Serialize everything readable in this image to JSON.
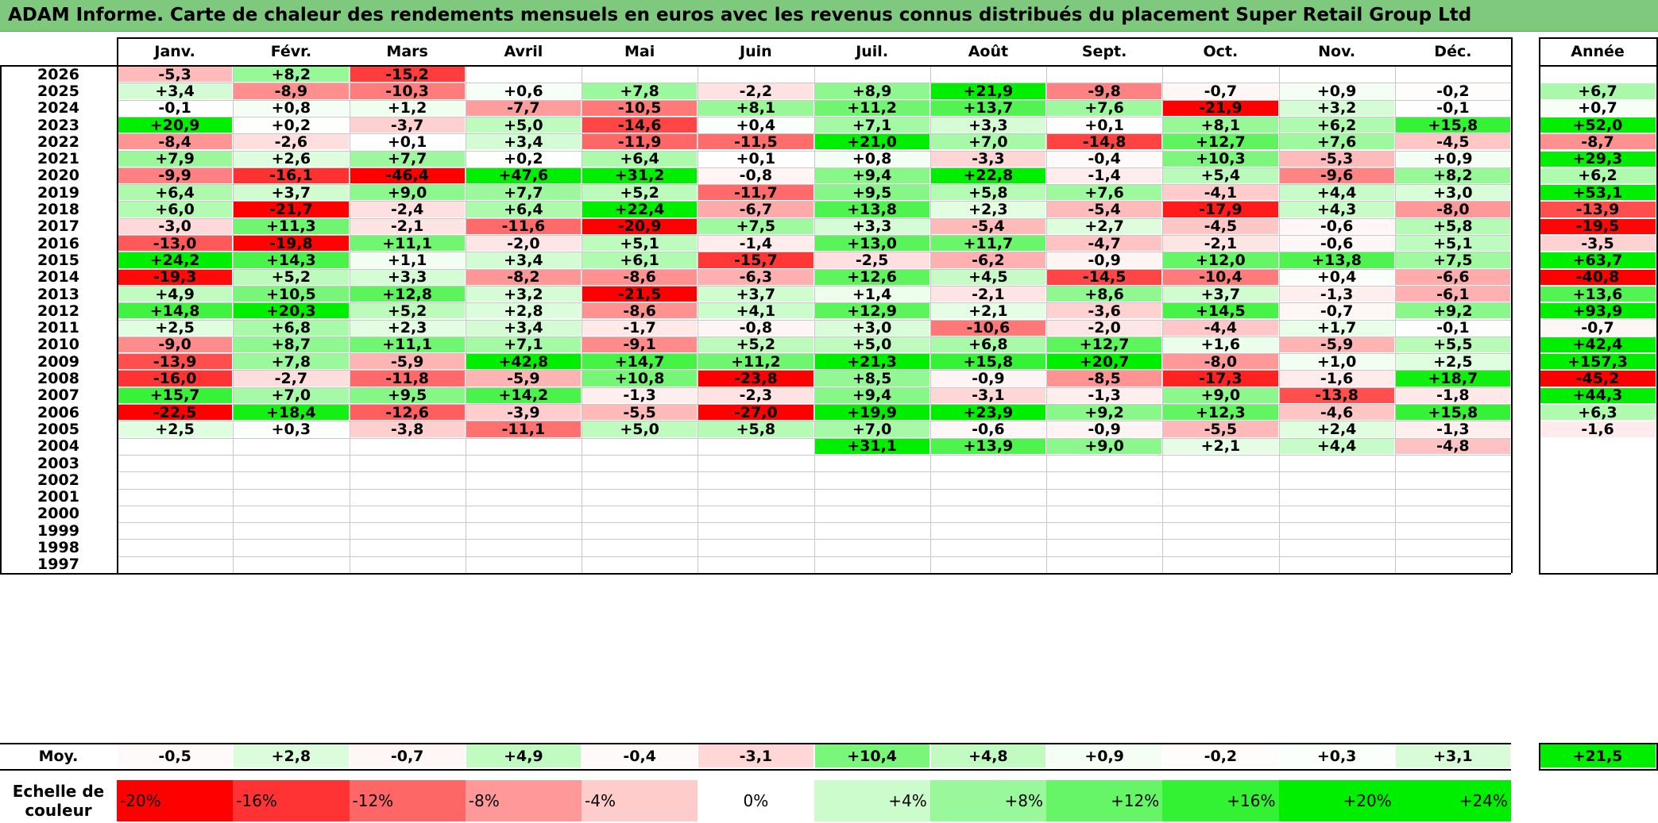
{
  "title": "ADAM Informe. Carte de chaleur des rendements mensuels en euros avec les revenus connus distribués du placement Super Retail Group Ltd",
  "colors": {
    "title_bg": "#7fc97f",
    "red": "#ff0000",
    "green": "#00ee00",
    "white": "#ffffff"
  },
  "chart_data": {
    "type": "heatmap",
    "months": [
      "Janv.",
      "Févr.",
      "Mars",
      "Avril",
      "Mai",
      "Juin",
      "Juil.",
      "Août",
      "Sept.",
      "Oct.",
      "Nov.",
      "Déc."
    ],
    "year_header": "Année",
    "rows": [
      {
        "year": "2026",
        "values": [
          -5.3,
          8.2,
          -15.2,
          null,
          null,
          null,
          null,
          null,
          null,
          null,
          null,
          null
        ],
        "labels": [
          "-5,3",
          "+8,2",
          "-15,2",
          "",
          "",
          "",
          "",
          "",
          "",
          "",
          "",
          ""
        ],
        "annual": null,
        "annual_label": ""
      },
      {
        "year": "2025",
        "values": [
          3.4,
          -8.9,
          -10.3,
          0.6,
          7.8,
          -2.2,
          8.9,
          21.9,
          -9.8,
          -0.7,
          0.9,
          -0.2
        ],
        "labels": [
          "+3,4",
          "-8,9",
          "-10,3",
          "+0,6",
          "+7,8",
          "-2,2",
          "+8,9",
          "+21,9",
          "-9,8",
          "-0,7",
          "+0,9",
          "-0,2"
        ],
        "annual": 6.7,
        "annual_label": "+6,7"
      },
      {
        "year": "2024",
        "values": [
          -0.1,
          0.8,
          1.2,
          -7.7,
          -10.5,
          8.1,
          11.2,
          13.7,
          7.6,
          -21.9,
          3.2,
          -0.1
        ],
        "labels": [
          "-0,1",
          "+0,8",
          "+1,2",
          "-7,7",
          "-10,5",
          "+8,1",
          "+11,2",
          "+13,7",
          "+7,6",
          "-21,9",
          "+3,2",
          "-0,1"
        ],
        "annual": 0.7,
        "annual_label": "+0,7"
      },
      {
        "year": "2023",
        "values": [
          20.9,
          0.2,
          -3.7,
          5.0,
          -14.6,
          0.4,
          7.1,
          3.3,
          0.1,
          8.1,
          6.2,
          15.8
        ],
        "labels": [
          "+20,9",
          "+0,2",
          "-3,7",
          "+5,0",
          "-14,6",
          "+0,4",
          "+7,1",
          "+3,3",
          "+0,1",
          "+8,1",
          "+6,2",
          "+15,8"
        ],
        "annual": 52.0,
        "annual_label": "+52,0"
      },
      {
        "year": "2022",
        "values": [
          -8.4,
          -2.6,
          0.1,
          3.4,
          -11.9,
          -11.5,
          21.0,
          7.0,
          -14.8,
          12.7,
          7.6,
          -4.5
        ],
        "labels": [
          "-8,4",
          "-2,6",
          "+0,1",
          "+3,4",
          "-11,9",
          "-11,5",
          "+21,0",
          "+7,0",
          "-14,8",
          "+12,7",
          "+7,6",
          "-4,5"
        ],
        "annual": -8.7,
        "annual_label": "-8,7"
      },
      {
        "year": "2021",
        "values": [
          7.9,
          2.6,
          7.7,
          0.2,
          6.4,
          0.1,
          0.8,
          -3.3,
          -0.4,
          10.3,
          -5.3,
          0.9
        ],
        "labels": [
          "+7,9",
          "+2,6",
          "+7,7",
          "+0,2",
          "+6,4",
          "+0,1",
          "+0,8",
          "-3,3",
          "-0,4",
          "+10,3",
          "-5,3",
          "+0,9"
        ],
        "annual": 29.3,
        "annual_label": "+29,3"
      },
      {
        "year": "2020",
        "values": [
          -9.9,
          -16.1,
          -46.4,
          47.6,
          31.2,
          -0.8,
          9.4,
          22.8,
          -1.4,
          5.4,
          -9.6,
          8.2
        ],
        "labels": [
          "-9,9",
          "-16,1",
          "-46,4",
          "+47,6",
          "+31,2",
          "-0,8",
          "+9,4",
          "+22,8",
          "-1,4",
          "+5,4",
          "-9,6",
          "+8,2"
        ],
        "annual": 6.2,
        "annual_label": "+6,2"
      },
      {
        "year": "2019",
        "values": [
          6.4,
          3.7,
          9.0,
          7.7,
          5.2,
          -11.7,
          9.5,
          5.8,
          7.6,
          -4.1,
          4.4,
          3.0
        ],
        "labels": [
          "+6,4",
          "+3,7",
          "+9,0",
          "+7,7",
          "+5,2",
          "-11,7",
          "+9,5",
          "+5,8",
          "+7,6",
          "-4,1",
          "+4,4",
          "+3,0"
        ],
        "annual": 53.1,
        "annual_label": "+53,1"
      },
      {
        "year": "2018",
        "values": [
          6.0,
          -21.7,
          -2.4,
          6.4,
          22.4,
          -6.7,
          13.8,
          2.3,
          -5.4,
          -17.9,
          4.3,
          -8.0
        ],
        "labels": [
          "+6,0",
          "-21,7",
          "-2,4",
          "+6,4",
          "+22,4",
          "-6,7",
          "+13,8",
          "+2,3",
          "-5,4",
          "-17,9",
          "+4,3",
          "-8,0"
        ],
        "annual": -13.9,
        "annual_label": "-13,9"
      },
      {
        "year": "2017",
        "values": [
          -3.0,
          11.3,
          -2.1,
          -11.6,
          -20.9,
          7.5,
          3.3,
          -5.4,
          2.7,
          -4.5,
          -0.6,
          5.8
        ],
        "labels": [
          "-3,0",
          "+11,3",
          "-2,1",
          "-11,6",
          "-20,9",
          "+7,5",
          "+3,3",
          "-5,4",
          "+2,7",
          "-4,5",
          "-0,6",
          "+5,8"
        ],
        "annual": -19.5,
        "annual_label": "-19,5"
      },
      {
        "year": "2016",
        "values": [
          -13.0,
          -19.8,
          11.1,
          -2.0,
          5.1,
          -1.4,
          13.0,
          11.7,
          -4.7,
          -2.1,
          -0.6,
          5.1
        ],
        "labels": [
          "-13,0",
          "-19,8",
          "+11,1",
          "-2,0",
          "+5,1",
          "-1,4",
          "+13,0",
          "+11,7",
          "-4,7",
          "-2,1",
          "-0,6",
          "+5,1"
        ],
        "annual": -3.5,
        "annual_label": "-3,5"
      },
      {
        "year": "2015",
        "values": [
          24.2,
          14.3,
          1.1,
          3.4,
          6.1,
          -15.7,
          -2.5,
          -6.2,
          -0.9,
          12.0,
          13.8,
          7.5
        ],
        "labels": [
          "+24,2",
          "+14,3",
          "+1,1",
          "+3,4",
          "+6,1",
          "-15,7",
          "-2,5",
          "-6,2",
          "-0,9",
          "+12,0",
          "+13,8",
          "+7,5"
        ],
        "annual": 63.7,
        "annual_label": "+63,7"
      },
      {
        "year": "2014",
        "values": [
          -19.3,
          5.2,
          3.3,
          -8.2,
          -8.6,
          -6.3,
          12.6,
          4.5,
          -14.5,
          -10.4,
          0.4,
          -6.6
        ],
        "labels": [
          "-19,3",
          "+5,2",
          "+3,3",
          "-8,2",
          "-8,6",
          "-6,3",
          "+12,6",
          "+4,5",
          "-14,5",
          "-10,4",
          "+0,4",
          "-6,6"
        ],
        "annual": -40.8,
        "annual_label": "-40,8"
      },
      {
        "year": "2013",
        "values": [
          4.9,
          10.5,
          12.8,
          3.2,
          -21.5,
          3.7,
          1.4,
          -2.1,
          8.6,
          3.7,
          -1.3,
          -6.1
        ],
        "labels": [
          "+4,9",
          "+10,5",
          "+12,8",
          "+3,2",
          "-21,5",
          "+3,7",
          "+1,4",
          "-2,1",
          "+8,6",
          "+3,7",
          "-1,3",
          "-6,1"
        ],
        "annual": 13.6,
        "annual_label": "+13,6"
      },
      {
        "year": "2012",
        "values": [
          14.8,
          20.3,
          5.2,
          2.8,
          -8.6,
          4.1,
          12.9,
          2.1,
          -3.6,
          14.5,
          -0.7,
          9.2
        ],
        "labels": [
          "+14,8",
          "+20,3",
          "+5,2",
          "+2,8",
          "-8,6",
          "+4,1",
          "+12,9",
          "+2,1",
          "-3,6",
          "+14,5",
          "-0,7",
          "+9,2"
        ],
        "annual": 93.9,
        "annual_label": "+93,9"
      },
      {
        "year": "2011",
        "values": [
          2.5,
          6.8,
          2.3,
          3.4,
          -1.7,
          -0.8,
          3.0,
          -10.6,
          -2.0,
          -4.4,
          1.7,
          -0.1
        ],
        "labels": [
          "+2,5",
          "+6,8",
          "+2,3",
          "+3,4",
          "-1,7",
          "-0,8",
          "+3,0",
          "-10,6",
          "-2,0",
          "-4,4",
          "+1,7",
          "-0,1"
        ],
        "annual": -0.7,
        "annual_label": "-0,7"
      },
      {
        "year": "2010",
        "values": [
          -9.0,
          8.7,
          11.1,
          7.1,
          -9.1,
          5.2,
          5.0,
          6.8,
          12.7,
          1.6,
          -5.9,
          5.5
        ],
        "labels": [
          "-9,0",
          "+8,7",
          "+11,1",
          "+7,1",
          "-9,1",
          "+5,2",
          "+5,0",
          "+6,8",
          "+12,7",
          "+1,6",
          "-5,9",
          "+5,5"
        ],
        "annual": 42.4,
        "annual_label": "+42,4"
      },
      {
        "year": "2009",
        "values": [
          -13.9,
          7.8,
          -5.9,
          42.8,
          14.7,
          11.2,
          21.3,
          15.8,
          20.7,
          -8.0,
          1.0,
          2.5
        ],
        "labels": [
          "-13,9",
          "+7,8",
          "-5,9",
          "+42,8",
          "+14,7",
          "+11,2",
          "+21,3",
          "+15,8",
          "+20,7",
          "-8,0",
          "+1,0",
          "+2,5"
        ],
        "annual": 157.3,
        "annual_label": "+157,3"
      },
      {
        "year": "2008",
        "values": [
          -16.0,
          -2.7,
          -11.8,
          -5.9,
          10.8,
          -23.8,
          8.5,
          -0.9,
          -8.5,
          -17.3,
          -1.6,
          18.7
        ],
        "labels": [
          "-16,0",
          "-2,7",
          "-11,8",
          "-5,9",
          "+10,8",
          "-23,8",
          "+8,5",
          "-0,9",
          "-8,5",
          "-17,3",
          "-1,6",
          "+18,7"
        ],
        "annual": -45.2,
        "annual_label": "-45,2"
      },
      {
        "year": "2007",
        "values": [
          15.7,
          7.0,
          9.5,
          14.2,
          -1.3,
          -2.3,
          9.4,
          -3.1,
          -1.3,
          9.0,
          -13.8,
          -1.8
        ],
        "labels": [
          "+15,7",
          "+7,0",
          "+9,5",
          "+14,2",
          "-1,3",
          "-2,3",
          "+9,4",
          "-3,1",
          "-1,3",
          "+9,0",
          "-13,8",
          "-1,8"
        ],
        "annual": 44.3,
        "annual_label": "+44,3"
      },
      {
        "year": "2006",
        "values": [
          -22.5,
          18.4,
          -12.6,
          -3.9,
          -5.5,
          -27.0,
          19.9,
          23.9,
          9.2,
          12.3,
          -4.6,
          15.8
        ],
        "labels": [
          "-22,5",
          "+18,4",
          "-12,6",
          "-3,9",
          "-5,5",
          "-27,0",
          "+19,9",
          "+23,9",
          "+9,2",
          "+12,3",
          "-4,6",
          "+15,8"
        ],
        "annual": 6.3,
        "annual_label": "+6,3"
      },
      {
        "year": "2005",
        "values": [
          2.5,
          0.3,
          -3.8,
          -11.1,
          5.0,
          5.8,
          7.0,
          -0.6,
          -0.9,
          -5.5,
          2.4,
          -1.3
        ],
        "labels": [
          "+2,5",
          "+0,3",
          "-3,8",
          "-11,1",
          "+5,0",
          "+5,8",
          "+7,0",
          "-0,6",
          "-0,9",
          "-5,5",
          "+2,4",
          "-1,3"
        ],
        "annual": -1.6,
        "annual_label": "-1,6"
      },
      {
        "year": "2004",
        "values": [
          null,
          null,
          null,
          null,
          null,
          null,
          31.1,
          13.9,
          9.0,
          2.1,
          4.4,
          -4.8
        ],
        "labels": [
          "",
          "",
          "",
          "",
          "",
          "",
          "+31,1",
          "+13,9",
          "+9,0",
          "+2,1",
          "+4,4",
          "-4,8"
        ],
        "annual": null,
        "annual_label": ""
      },
      {
        "year": "2003",
        "values": [
          null,
          null,
          null,
          null,
          null,
          null,
          null,
          null,
          null,
          null,
          null,
          null
        ],
        "labels": [
          "",
          "",
          "",
          "",
          "",
          "",
          "",
          "",
          "",
          "",
          "",
          ""
        ],
        "annual": null,
        "annual_label": ""
      },
      {
        "year": "2002",
        "values": [
          null,
          null,
          null,
          null,
          null,
          null,
          null,
          null,
          null,
          null,
          null,
          null
        ],
        "labels": [
          "",
          "",
          "",
          "",
          "",
          "",
          "",
          "",
          "",
          "",
          "",
          ""
        ],
        "annual": null,
        "annual_label": ""
      },
      {
        "year": "2001",
        "values": [
          null,
          null,
          null,
          null,
          null,
          null,
          null,
          null,
          null,
          null,
          null,
          null
        ],
        "labels": [
          "",
          "",
          "",
          "",
          "",
          "",
          "",
          "",
          "",
          "",
          "",
          ""
        ],
        "annual": null,
        "annual_label": ""
      },
      {
        "year": "2000",
        "values": [
          null,
          null,
          null,
          null,
          null,
          null,
          null,
          null,
          null,
          null,
          null,
          null
        ],
        "labels": [
          "",
          "",
          "",
          "",
          "",
          "",
          "",
          "",
          "",
          "",
          "",
          ""
        ],
        "annual": null,
        "annual_label": ""
      },
      {
        "year": "1999",
        "values": [
          null,
          null,
          null,
          null,
          null,
          null,
          null,
          null,
          null,
          null,
          null,
          null
        ],
        "labels": [
          "",
          "",
          "",
          "",
          "",
          "",
          "",
          "",
          "",
          "",
          "",
          ""
        ],
        "annual": null,
        "annual_label": ""
      },
      {
        "year": "1998",
        "values": [
          null,
          null,
          null,
          null,
          null,
          null,
          null,
          null,
          null,
          null,
          null,
          null
        ],
        "labels": [
          "",
          "",
          "",
          "",
          "",
          "",
          "",
          "",
          "",
          "",
          "",
          ""
        ],
        "annual": null,
        "annual_label": ""
      },
      {
        "year": "1997",
        "values": [
          null,
          null,
          null,
          null,
          null,
          null,
          null,
          null,
          null,
          null,
          null,
          null
        ],
        "labels": [
          "",
          "",
          "",
          "",
          "",
          "",
          "",
          "",
          "",
          "",
          "",
          ""
        ],
        "annual": null,
        "annual_label": ""
      }
    ],
    "average": {
      "label": "Moy.",
      "values": [
        -0.5,
        2.8,
        -0.7,
        4.9,
        -0.4,
        -3.1,
        10.4,
        4.8,
        0.9,
        -0.2,
        0.3,
        3.1
      ],
      "labels": [
        "-0,5",
        "+2,8",
        "-0,7",
        "+4,9",
        "-0,4",
        "-3,1",
        "+10,4",
        "+4,8",
        "+0,9",
        "-0,2",
        "+0,3",
        "+3,1"
      ],
      "annual": 21.5,
      "annual_label": "+21,5"
    },
    "scale": {
      "label_line1": "Echelle de",
      "label_line2": "couleur",
      "values": [
        -20,
        -16,
        -12,
        -8,
        -4,
        0,
        4,
        8,
        12,
        16,
        20,
        24
      ],
      "labels": [
        "-20%",
        "-16%",
        "-12%",
        "-8%",
        "-4%",
        "0%",
        "+4%",
        "+8%",
        "+12%",
        "+16%",
        "+20%",
        "+24%"
      ]
    },
    "color_range": [
      -20,
      24
    ]
  }
}
